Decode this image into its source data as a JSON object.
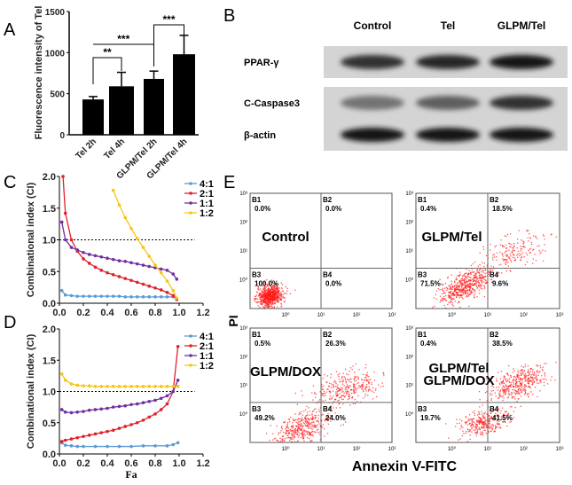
{
  "panels": {
    "a": "A",
    "b": "B",
    "c": "C",
    "d": "D",
    "e": "E"
  },
  "chart_data": [
    {
      "id": "A",
      "type": "bar",
      "categories": [
        "Tel 2h",
        "Tel 4h",
        "GLPM/Tel 2h",
        "GLPM/Tel 4h"
      ],
      "values": [
        430,
        590,
        680,
        980
      ],
      "errors": [
        35,
        170,
        95,
        230
      ],
      "ylabel": "Fluorescence intensity of Tel",
      "ylim": [
        0,
        1500
      ],
      "yticks": [
        0,
        500,
        1000,
        1500
      ],
      "bar_color": "#000000",
      "significance": [
        {
          "from": 0,
          "to": 1,
          "label": "**"
        },
        {
          "from": 0,
          "to": 2,
          "label": "***"
        },
        {
          "from": 2,
          "to": 3,
          "label": "***"
        }
      ]
    },
    {
      "id": "C",
      "type": "line",
      "xlabel": "",
      "ylabel": "Combinational index (CI)",
      "xlim": [
        0,
        1.2
      ],
      "ylim": [
        0,
        2.0
      ],
      "xticks": [
        "0.0",
        "0.2",
        "0.4",
        "0.6",
        "0.8",
        "1.0",
        "1.2"
      ],
      "yticks": [
        "0.0",
        "0.5",
        "1.0",
        "1.5",
        "2.0"
      ],
      "reference_line": 1.0,
      "legend": "top-right",
      "series": [
        {
          "name": "4:1",
          "color": "#5b9bd5",
          "points": [
            [
              0.02,
              0.2
            ],
            [
              0.05,
              0.13
            ],
            [
              0.1,
              0.12
            ],
            [
              0.15,
              0.11
            ],
            [
              0.2,
              0.11
            ],
            [
              0.25,
              0.11
            ],
            [
              0.3,
              0.11
            ],
            [
              0.35,
              0.11
            ],
            [
              0.4,
              0.11
            ],
            [
              0.45,
              0.11
            ],
            [
              0.5,
              0.11
            ],
            [
              0.55,
              0.1
            ],
            [
              0.6,
              0.1
            ],
            [
              0.65,
              0.1
            ],
            [
              0.7,
              0.1
            ],
            [
              0.75,
              0.1
            ],
            [
              0.8,
              0.1
            ],
            [
              0.85,
              0.1
            ],
            [
              0.9,
              0.1
            ],
            [
              0.95,
              0.1
            ]
          ]
        },
        {
          "name": "2:1",
          "color": "#e0212b",
          "points": [
            [
              0.03,
              2.0
            ],
            [
              0.05,
              1.42
            ],
            [
              0.1,
              1.0
            ],
            [
              0.15,
              0.82
            ],
            [
              0.2,
              0.7
            ],
            [
              0.25,
              0.63
            ],
            [
              0.3,
              0.57
            ],
            [
              0.35,
              0.52
            ],
            [
              0.4,
              0.48
            ],
            [
              0.45,
              0.45
            ],
            [
              0.5,
              0.42
            ],
            [
              0.55,
              0.39
            ],
            [
              0.6,
              0.36
            ],
            [
              0.65,
              0.33
            ],
            [
              0.7,
              0.3
            ],
            [
              0.75,
              0.27
            ],
            [
              0.8,
              0.24
            ],
            [
              0.85,
              0.21
            ],
            [
              0.9,
              0.17
            ],
            [
              0.95,
              0.12
            ],
            [
              0.98,
              0.06
            ]
          ]
        },
        {
          "name": "1:1",
          "color": "#7030a0",
          "points": [
            [
              0.02,
              1.28
            ],
            [
              0.05,
              1.0
            ],
            [
              0.1,
              0.88
            ],
            [
              0.15,
              0.84
            ],
            [
              0.2,
              0.8
            ],
            [
              0.25,
              0.77
            ],
            [
              0.3,
              0.75
            ],
            [
              0.35,
              0.73
            ],
            [
              0.4,
              0.71
            ],
            [
              0.45,
              0.69
            ],
            [
              0.5,
              0.67
            ],
            [
              0.55,
              0.66
            ],
            [
              0.6,
              0.64
            ],
            [
              0.65,
              0.62
            ],
            [
              0.7,
              0.6
            ],
            [
              0.75,
              0.58
            ],
            [
              0.8,
              0.56
            ],
            [
              0.85,
              0.54
            ],
            [
              0.9,
              0.52
            ],
            [
              0.95,
              0.46
            ],
            [
              0.98,
              0.38
            ]
          ]
        },
        {
          "name": "1:2",
          "color": "#f5c518",
          "points": [
            [
              0.45,
              1.78
            ],
            [
              0.5,
              1.55
            ],
            [
              0.55,
              1.35
            ],
            [
              0.6,
              1.18
            ],
            [
              0.65,
              1.02
            ],
            [
              0.7,
              0.88
            ],
            [
              0.75,
              0.74
            ],
            [
              0.8,
              0.6
            ],
            [
              0.85,
              0.48
            ],
            [
              0.9,
              0.35
            ],
            [
              0.95,
              0.2
            ],
            [
              0.98,
              0.08
            ]
          ]
        }
      ]
    },
    {
      "id": "D",
      "type": "line",
      "xlabel": "Fa",
      "ylabel": "Combinational index (CI)",
      "xlim": [
        0,
        1.2
      ],
      "ylim": [
        0,
        2.0
      ],
      "xticks": [
        "0.0",
        "0.2",
        "0.4",
        "0.6",
        "0.8",
        "1.0",
        "1.2"
      ],
      "yticks": [
        "0.0",
        "0.5",
        "1.0",
        "1.5",
        "2.0"
      ],
      "reference_line": 1.0,
      "legend": "top-right",
      "series": [
        {
          "name": "4:1",
          "color": "#5b9bd5",
          "points": [
            [
              0.02,
              0.18
            ],
            [
              0.05,
              0.14
            ],
            [
              0.1,
              0.13
            ],
            [
              0.15,
              0.12
            ],
            [
              0.2,
              0.12
            ],
            [
              0.3,
              0.12
            ],
            [
              0.4,
              0.12
            ],
            [
              0.5,
              0.12
            ],
            [
              0.6,
              0.12
            ],
            [
              0.7,
              0.13
            ],
            [
              0.8,
              0.13
            ],
            [
              0.9,
              0.13
            ],
            [
              0.95,
              0.15
            ],
            [
              0.99,
              0.18
            ]
          ]
        },
        {
          "name": "2:1",
          "color": "#e0212b",
          "points": [
            [
              0.02,
              0.2
            ],
            [
              0.05,
              0.22
            ],
            [
              0.1,
              0.24
            ],
            [
              0.15,
              0.26
            ],
            [
              0.2,
              0.28
            ],
            [
              0.25,
              0.3
            ],
            [
              0.3,
              0.32
            ],
            [
              0.35,
              0.34
            ],
            [
              0.4,
              0.36
            ],
            [
              0.45,
              0.38
            ],
            [
              0.5,
              0.41
            ],
            [
              0.55,
              0.44
            ],
            [
              0.6,
              0.47
            ],
            [
              0.65,
              0.5
            ],
            [
              0.7,
              0.54
            ],
            [
              0.75,
              0.59
            ],
            [
              0.8,
              0.64
            ],
            [
              0.85,
              0.71
            ],
            [
              0.9,
              0.8
            ],
            [
              0.95,
              1.0
            ],
            [
              0.99,
              1.72
            ]
          ]
        },
        {
          "name": "1:1",
          "color": "#7030a0",
          "points": [
            [
              0.02,
              0.71
            ],
            [
              0.05,
              0.67
            ],
            [
              0.1,
              0.66
            ],
            [
              0.15,
              0.67
            ],
            [
              0.2,
              0.68
            ],
            [
              0.25,
              0.7
            ],
            [
              0.3,
              0.71
            ],
            [
              0.35,
              0.72
            ],
            [
              0.4,
              0.73
            ],
            [
              0.45,
              0.75
            ],
            [
              0.5,
              0.76
            ],
            [
              0.55,
              0.77
            ],
            [
              0.6,
              0.79
            ],
            [
              0.65,
              0.8
            ],
            [
              0.7,
              0.82
            ],
            [
              0.75,
              0.84
            ],
            [
              0.8,
              0.86
            ],
            [
              0.85,
              0.89
            ],
            [
              0.9,
              0.93
            ],
            [
              0.95,
              1.0
            ],
            [
              0.99,
              1.18
            ]
          ]
        },
        {
          "name": "1:2",
          "color": "#f5c518",
          "points": [
            [
              0.02,
              1.28
            ],
            [
              0.05,
              1.18
            ],
            [
              0.1,
              1.12
            ],
            [
              0.15,
              1.1
            ],
            [
              0.2,
              1.09
            ],
            [
              0.25,
              1.09
            ],
            [
              0.3,
              1.08
            ],
            [
              0.35,
              1.08
            ],
            [
              0.4,
              1.08
            ],
            [
              0.45,
              1.08
            ],
            [
              0.5,
              1.08
            ],
            [
              0.55,
              1.08
            ],
            [
              0.6,
              1.08
            ],
            [
              0.65,
              1.08
            ],
            [
              0.7,
              1.08
            ],
            [
              0.75,
              1.08
            ],
            [
              0.8,
              1.08
            ],
            [
              0.85,
              1.08
            ],
            [
              0.9,
              1.08
            ],
            [
              0.95,
              1.08
            ],
            [
              0.99,
              1.08
            ]
          ]
        }
      ]
    },
    {
      "id": "E",
      "type": "scatter",
      "xlabel": "Annexin V-FITC",
      "ylabel": "PI",
      "xticks": [
        "10⁰",
        "10¹",
        "10²",
        "10³"
      ],
      "yticks": [
        "10⁰",
        "10¹",
        "10²",
        "10³"
      ],
      "point_color": "#ff1a1a",
      "plots": [
        {
          "title": [
            "Control"
          ],
          "quadrants": {
            "B1": "0.0%",
            "B2": "0.0%",
            "B3": "100.0%",
            "B4": "0.0%"
          }
        },
        {
          "title": [
            "GLPM/Tel"
          ],
          "quadrants": {
            "B1": "0.4%",
            "B2": "18.5%",
            "B3": "71.5%",
            "B4": "9.6%"
          }
        },
        {
          "title": [
            "GLPM/DOX"
          ],
          "quadrants": {
            "B1": "0.5%",
            "B2": "26.3%",
            "B3": "49.2%",
            "B4": "24.0%"
          }
        },
        {
          "title": [
            "GLPM/Tel",
            "GLPM/DOX"
          ],
          "quadrants": {
            "B1": "0.4%",
            "B2": "38.5%",
            "B3": "19.7%",
            "B4": "41.5%"
          }
        }
      ]
    }
  ],
  "blot": {
    "columns": [
      "Control",
      "Tel",
      "GLPM/Tel"
    ],
    "rows": [
      {
        "label": "PPAR-γ",
        "intensity": [
          0.8,
          0.85,
          0.95
        ]
      },
      {
        "label": "C-Caspase3",
        "intensity": [
          0.45,
          0.55,
          0.8
        ]
      },
      {
        "label": "β-actin",
        "intensity": [
          0.95,
          0.95,
          0.95
        ]
      }
    ]
  }
}
